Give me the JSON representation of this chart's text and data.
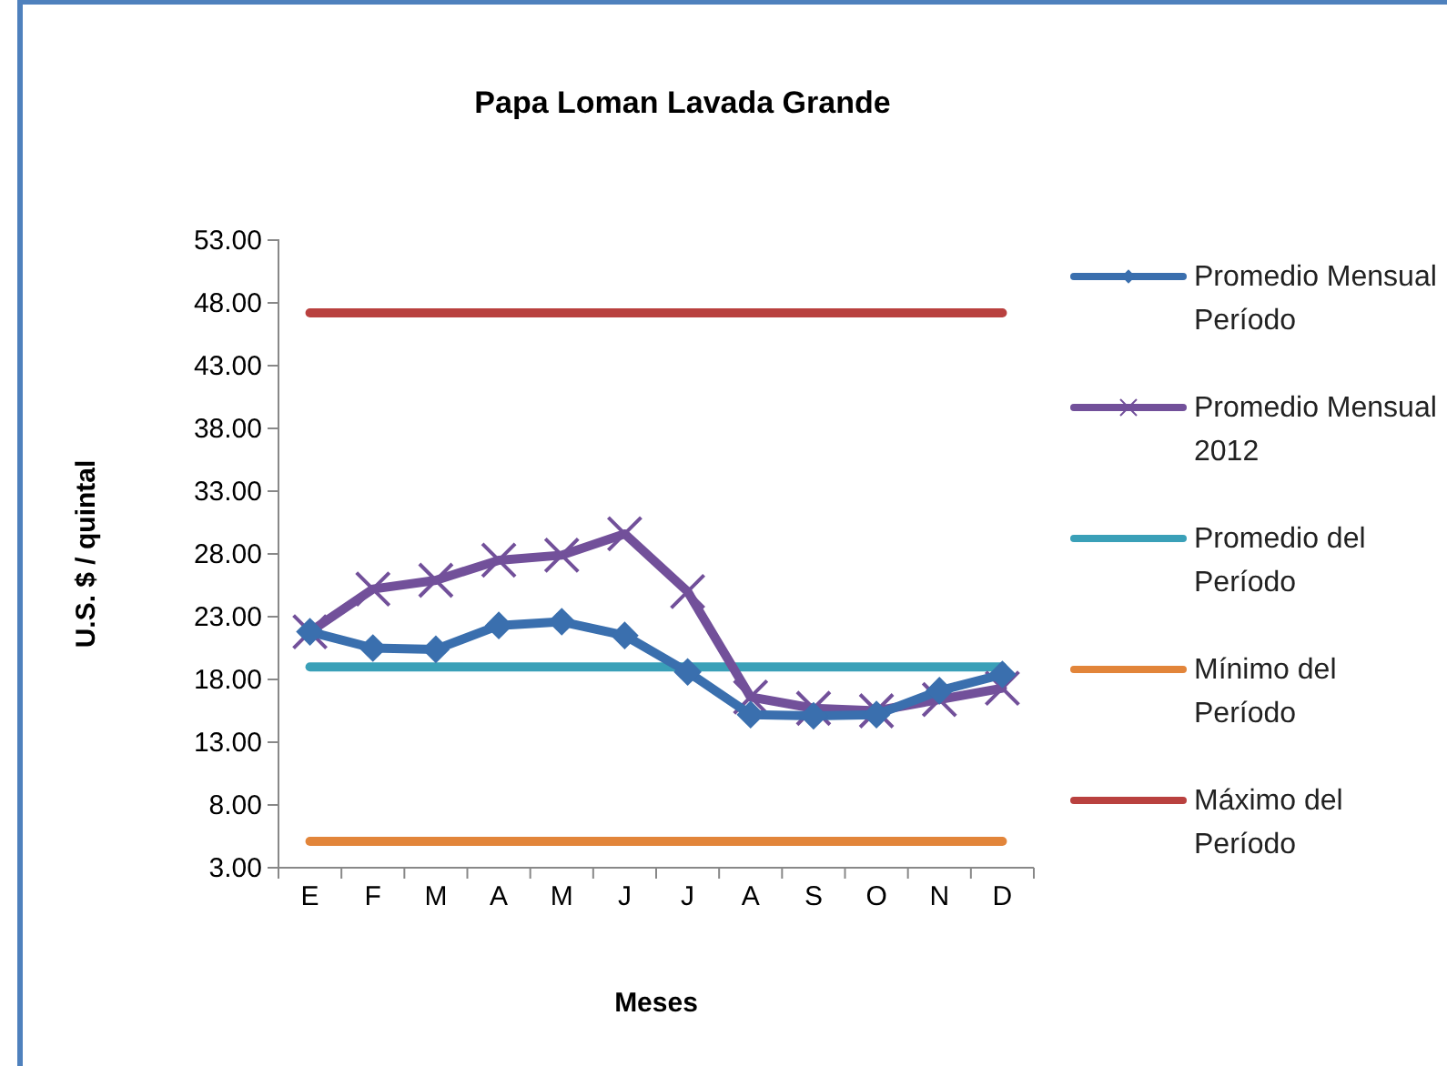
{
  "chart_data": {
    "type": "line",
    "title": "Papa Loman Lavada Grande",
    "xlabel": "Meses",
    "ylabel": "U.S. $ / quintal",
    "categories": [
      "E",
      "F",
      "M",
      "A",
      "M",
      "J",
      "J",
      "A",
      "S",
      "O",
      "N",
      "D"
    ],
    "series": [
      {
        "name": "Promedio Mensual Período",
        "color": "#3a6fae",
        "marker": "diamond",
        "values": [
          21.8,
          20.5,
          20.4,
          22.3,
          22.6,
          21.5,
          18.6,
          15.2,
          15.1,
          15.2,
          17.1,
          18.4
        ]
      },
      {
        "name": "Promedio Mensual 2012",
        "color": "#72509a",
        "marker": "cross",
        "values": [
          21.8,
          25.2,
          25.9,
          27.5,
          27.9,
          29.6,
          25.0,
          16.6,
          15.7,
          15.5,
          16.4,
          17.3
        ]
      },
      {
        "name": "Promedio del Período",
        "color": "#3aa0b8",
        "marker": "none",
        "values": [
          19.0,
          19.0,
          19.0,
          19.0,
          19.0,
          19.0,
          19.0,
          19.0,
          19.0,
          19.0,
          19.0,
          19.0
        ]
      },
      {
        "name": "Mínimo del Período",
        "color": "#e2853a",
        "marker": "none",
        "values": [
          5.1,
          5.1,
          5.1,
          5.1,
          5.1,
          5.1,
          5.1,
          5.1,
          5.1,
          5.1,
          5.1,
          5.1
        ]
      },
      {
        "name": "Máximo del Período",
        "color": "#b9413f",
        "marker": "none",
        "values": [
          47.2,
          47.2,
          47.2,
          47.2,
          47.2,
          47.2,
          47.2,
          47.2,
          47.2,
          47.2,
          47.2,
          47.2
        ]
      }
    ],
    "ylim": [
      3,
      53
    ],
    "yticks": [
      {
        "value": 3,
        "label": "3.00"
      },
      {
        "value": 8,
        "label": "8.00"
      },
      {
        "value": 13,
        "label": "13.00"
      },
      {
        "value": 18,
        "label": "18.00"
      },
      {
        "value": 23,
        "label": "23.00"
      },
      {
        "value": 28,
        "label": "28.00"
      },
      {
        "value": 33,
        "label": "33.00"
      },
      {
        "value": 38,
        "label": "38.00"
      },
      {
        "value": 43,
        "label": "43.00"
      },
      {
        "value": 48,
        "label": "48.00"
      },
      {
        "value": 53,
        "label": "53.00"
      }
    ],
    "grid": false,
    "legend": "right"
  }
}
